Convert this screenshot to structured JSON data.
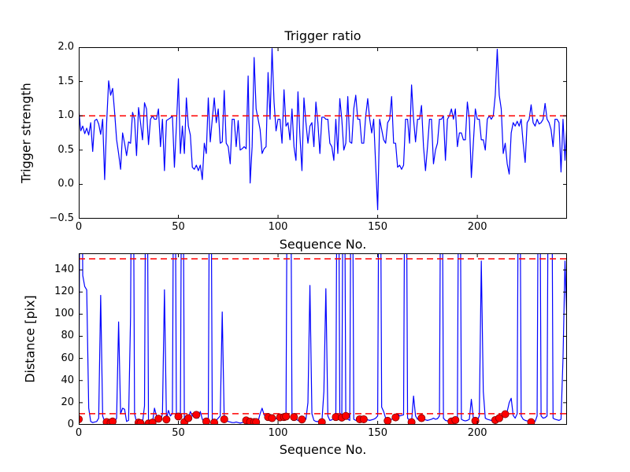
{
  "colors": {
    "background": "#ffffff",
    "axes": "#000000",
    "text": "#000000",
    "series_line": "#0000ff",
    "threshold_line": "#ff0000",
    "marker_face": "#ff0000",
    "marker_edge": "#7f0000"
  },
  "chart_data": [
    {
      "id": "trigger-ratio",
      "type": "line",
      "title": "Trigger ratio",
      "xlabel": "Sequence No.",
      "ylabel": "Trigger strength",
      "xlim": [
        0,
        245
      ],
      "ylim": [
        -0.5,
        2.0
      ],
      "xticks": [
        0,
        50,
        100,
        150,
        200
      ],
      "xtick_labels": [
        "0",
        "50",
        "100",
        "150",
        "200"
      ],
      "yticks": [
        -0.5,
        0.0,
        0.5,
        1.0,
        1.5,
        2.0
      ],
      "ytick_labels": [
        "−0.5",
        "0.0",
        "0.5",
        "1.0",
        "1.5",
        "2.0"
      ],
      "grid": false,
      "legend": "none",
      "threshold_lines": [
        1.0
      ],
      "x_start": 0,
      "x_step": 1,
      "values": [
        1.1,
        0.78,
        0.85,
        0.74,
        0.82,
        0.72,
        0.9,
        0.48,
        0.93,
        0.95,
        0.88,
        0.73,
        0.95,
        0.07,
        0.9,
        1.51,
        1.3,
        1.4,
        1.05,
        0.65,
        0.45,
        0.22,
        0.75,
        0.6,
        0.42,
        0.62,
        0.6,
        1.05,
        0.95,
        0.42,
        1.12,
        0.9,
        0.65,
        1.19,
        1.1,
        0.58,
        0.95,
        1.0,
        0.95,
        0.95,
        1.1,
        0.55,
        0.95,
        0.2,
        0.93,
        0.95,
        0.97,
        1.0,
        0.25,
        0.85,
        1.54,
        0.45,
        0.85,
        0.45,
        1.26,
        0.85,
        0.72,
        0.25,
        0.22,
        0.28,
        0.2,
        0.28,
        0.07,
        0.6,
        0.45,
        1.26,
        0.62,
        0.95,
        1.26,
        0.9,
        1.1,
        0.6,
        0.62,
        1.37,
        0.6,
        0.55,
        0.3,
        0.95,
        0.95,
        0.55,
        0.93,
        0.5,
        0.52,
        0.55,
        0.52,
        1.58,
        0.02,
        0.55,
        1.85,
        1.1,
        0.95,
        0.8,
        0.45,
        0.52,
        0.55,
        1.63,
        0.95,
        1.98,
        1.2,
        0.78,
        0.95,
        0.95,
        0.6,
        1.38,
        0.85,
        0.9,
        0.65,
        1.1,
        0.55,
        0.35,
        1.35,
        0.7,
        0.2,
        1.26,
        0.9,
        0.6,
        0.85,
        0.9,
        0.55,
        1.2,
        0.9,
        0.45,
        0.98,
        0.98,
        0.95,
        0.95,
        0.6,
        0.55,
        0.35,
        0.95,
        0.45,
        1.25,
        0.95,
        0.5,
        0.6,
        1.28,
        0.62,
        0.6,
        1.1,
        1.3,
        0.95,
        0.95,
        0.6,
        0.6,
        1.0,
        1.25,
        0.95,
        0.75,
        0.95,
        0.28,
        -0.37,
        0.95,
        0.8,
        0.65,
        0.6,
        0.9,
        0.95,
        1.28,
        0.6,
        0.6,
        0.25,
        0.28,
        0.22,
        0.28,
        0.95,
        0.95,
        0.6,
        1.45,
        0.95,
        0.62,
        0.95,
        0.95,
        1.15,
        0.55,
        0.2,
        0.55,
        0.95,
        0.95,
        0.3,
        0.5,
        0.6,
        0.95,
        0.95,
        1.0,
        0.35,
        0.95,
        1.0,
        1.1,
        0.95,
        1.1,
        0.55,
        0.75,
        0.75,
        0.65,
        0.65,
        1.2,
        0.95,
        0.1,
        0.6,
        1.1,
        0.95,
        0.95,
        0.65,
        0.65,
        0.5,
        0.95,
        1.0,
        0.95,
        1.0,
        1.3,
        1.97,
        1.3,
        1.1,
        0.45,
        0.6,
        0.3,
        0.15,
        0.75,
        0.9,
        0.85,
        0.92,
        0.85,
        0.95,
        0.6,
        0.32,
        0.9,
        0.95,
        1.16,
        0.9,
        0.85,
        0.95,
        0.88,
        0.9,
        0.95,
        1.18,
        0.95,
        0.9,
        0.8,
        0.55,
        0.95,
        0.95,
        0.9,
        0.18,
        0.95,
        0.35,
        0.9
      ]
    },
    {
      "id": "distance",
      "type": "line",
      "title": "",
      "xlabel": "Sequence No.",
      "ylabel": "Distance [pix]",
      "xlim": [
        0,
        245
      ],
      "ylim": [
        0,
        155
      ],
      "xticks": [
        0,
        50,
        100,
        150,
        200
      ],
      "xtick_labels": [
        "0",
        "50",
        "100",
        "150",
        "200"
      ],
      "yticks": [
        0,
        20,
        40,
        60,
        80,
        100,
        120,
        140
      ],
      "ytick_labels": [
        "0",
        "20",
        "40",
        "60",
        "80",
        "100",
        "120",
        "140"
      ],
      "grid": false,
      "legend": "none",
      "threshold_lines": [
        10,
        150
      ],
      "offscale_spike_value": 400,
      "x_start": 0,
      "x_step": 1,
      "values": [
        5,
        400,
        135,
        125,
        122,
        15,
        3,
        2,
        2.5,
        3,
        6,
        117,
        8,
        3,
        2.5,
        2,
        2,
        3,
        2.5,
        6,
        93,
        10,
        15,
        14,
        3,
        4,
        98,
        400,
        10,
        2.5,
        2,
        1.5,
        2,
        17,
        400,
        1.2,
        2,
        2,
        15,
        8,
        5.5,
        3,
        10,
        122,
        4.8,
        13,
        8,
        10,
        400,
        6,
        7.5,
        5,
        400,
        2.4,
        3,
        6,
        12,
        8,
        8,
        9,
        6,
        12,
        5,
        3,
        3,
        2.5,
        400,
        3,
        2,
        4,
        6,
        8,
        102,
        5,
        4,
        3,
        2.5,
        2,
        2,
        2.5,
        2,
        1.5,
        2,
        2.5,
        4,
        3,
        2.8,
        2.5,
        2.5,
        2.5,
        3,
        10,
        15,
        9,
        7,
        7,
        5,
        6,
        5,
        5.5,
        6,
        6.7,
        6.5,
        7,
        7.5,
        400,
        400,
        8,
        7,
        5,
        4,
        3,
        4.8,
        4,
        5,
        20,
        126,
        10,
        4,
        3,
        3,
        2.5,
        2.4,
        30,
        123,
        8,
        4,
        4.5,
        6,
        7,
        400,
        6,
        6.5,
        400,
        8,
        5,
        4,
        400,
        5,
        4,
        4.5,
        5,
        4.5,
        5,
        4,
        4.5,
        4,
        4.5,
        5,
        6,
        8,
        400,
        16,
        12,
        6,
        3.6,
        4,
        5,
        6,
        6.7,
        10,
        8,
        8.5,
        9,
        400,
        6,
        4,
        2.4,
        26,
        8,
        5,
        5.5,
        6,
        5,
        4.5,
        4,
        4.5,
        5,
        6,
        5,
        5.5,
        8,
        400,
        6,
        4,
        3.5,
        3,
        3,
        3.5,
        4.3,
        6,
        400,
        5,
        4,
        3.5,
        4,
        5,
        23,
        6,
        3.6,
        4,
        8,
        148,
        30,
        6,
        5,
        4.5,
        4,
        4.5,
        4.3,
        5,
        6,
        7,
        8,
        9.6,
        12,
        20,
        24,
        8.4,
        6,
        10,
        400,
        8,
        5,
        4,
        3.5,
        3,
        2.4,
        2.5,
        3,
        8,
        400,
        8,
        6,
        6.5,
        8,
        400,
        400,
        6,
        5,
        4.5,
        4,
        5,
        60,
        148,
        90
      ],
      "markers": [
        [
          0,
          5
        ],
        [
          14,
          2.5
        ],
        [
          16,
          2
        ],
        [
          17,
          3
        ],
        [
          30,
          2
        ],
        [
          31,
          1.5
        ],
        [
          35,
          1.2
        ],
        [
          37,
          2
        ],
        [
          40,
          5.5
        ],
        [
          44,
          4.8
        ],
        [
          50,
          7.5
        ],
        [
          53,
          2.4
        ],
        [
          55,
          6
        ],
        [
          59,
          9
        ],
        [
          64,
          3
        ],
        [
          68,
          2
        ],
        [
          73,
          5
        ],
        [
          84,
          4
        ],
        [
          86,
          2.8
        ],
        [
          88,
          2.5
        ],
        [
          89,
          2.5
        ],
        [
          95,
          7
        ],
        [
          97,
          6
        ],
        [
          101,
          6.7
        ],
        [
          103,
          7
        ],
        [
          104,
          7.5
        ],
        [
          108,
          7
        ],
        [
          112,
          4.8
        ],
        [
          122,
          2.4
        ],
        [
          129,
          7
        ],
        [
          132,
          6.5
        ],
        [
          134,
          8
        ],
        [
          141,
          5
        ],
        [
          143,
          5
        ],
        [
          155,
          3.6
        ],
        [
          159,
          6.7
        ],
        [
          167,
          2.4
        ],
        [
          172,
          6
        ],
        [
          187,
          3
        ],
        [
          189,
          4.3
        ],
        [
          199,
          3.6
        ],
        [
          209,
          4.3
        ],
        [
          211,
          6
        ],
        [
          214,
          9.6
        ],
        [
          227,
          2.4
        ]
      ]
    }
  ]
}
